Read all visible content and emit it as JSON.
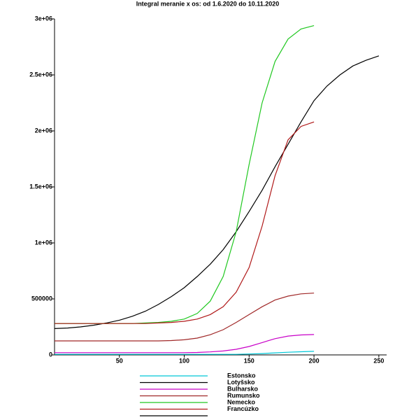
{
  "chart_data": {
    "type": "line",
    "title": "Integral meranie x os: od 1.6.2020 do 10.11.2020",
    "x": [
      0,
      10,
      20,
      30,
      40,
      50,
      60,
      70,
      80,
      90,
      100,
      110,
      120,
      130,
      140,
      150,
      160,
      170,
      180,
      190,
      200,
      210,
      220,
      230,
      240,
      250
    ],
    "xlim": [
      0,
      256
    ],
    "xticks": [
      50,
      100,
      150,
      200,
      250
    ],
    "ylim": [
      0,
      3000000
    ],
    "yticks": [
      0,
      500000,
      {
        "value": 1000000,
        "label": "1e+06"
      },
      {
        "value": 1500000,
        "label": "1.5e+06"
      },
      {
        "value": 2000000,
        "label": "2e+06"
      },
      {
        "value": 2500000,
        "label": "2.5e+06"
      },
      {
        "value": 3000000,
        "label": "3e+06"
      }
    ],
    "series": [
      {
        "name": "Estonsko",
        "color": "#00c8d8",
        "values": [
          5000,
          5000,
          5000,
          5000,
          5000,
          5000,
          5000,
          5000,
          5000,
          5000,
          5000,
          5000,
          5000,
          5000,
          5000,
          8000,
          12000,
          18000,
          24000,
          28000,
          32000,
          null,
          null,
          null,
          null,
          null
        ]
      },
      {
        "name": "Lotyšsko",
        "color": "#000000",
        "values": [
          235000,
          240000,
          250000,
          265000,
          285000,
          310000,
          345000,
          390000,
          450000,
          520000,
          600000,
          700000,
          810000,
          940000,
          1100000,
          1280000,
          1470000,
          1680000,
          1880000,
          2080000,
          2270000,
          2400000,
          2500000,
          2580000,
          2630000,
          2670000
        ]
      },
      {
        "name": "Bulharsko",
        "color": "#c800c8",
        "values": [
          20000,
          20000,
          20000,
          20000,
          20000,
          20000,
          20000,
          20000,
          20000,
          20000,
          20000,
          22000,
          27000,
          35000,
          50000,
          75000,
          110000,
          145000,
          168000,
          178000,
          182000,
          null,
          null,
          null,
          null,
          null
        ]
      },
      {
        "name": "Rumunsko",
        "color": "#a02828",
        "values": [
          125000,
          125000,
          125000,
          125000,
          125000,
          125000,
          125000,
          125000,
          125000,
          128000,
          135000,
          150000,
          180000,
          225000,
          290000,
          360000,
          430000,
          490000,
          525000,
          545000,
          552000,
          null,
          null,
          null,
          null,
          null
        ]
      },
      {
        "name": "Nemecko",
        "color": "#20c820",
        "values": [
          280000,
          280000,
          280000,
          280000,
          280000,
          280000,
          280000,
          285000,
          290000,
          300000,
          320000,
          370000,
          480000,
          700000,
          1100000,
          1700000,
          2250000,
          2620000,
          2820000,
          2910000,
          2940000,
          null,
          null,
          null,
          null,
          null
        ]
      },
      {
        "name": "Francúzko",
        "color": "#b01818",
        "values": [
          280000,
          280000,
          280000,
          280000,
          280000,
          280000,
          280000,
          280000,
          285000,
          290000,
          300000,
          320000,
          360000,
          430000,
          560000,
          780000,
          1150000,
          1600000,
          1920000,
          2040000,
          2080000,
          null,
          null,
          null,
          null,
          null
        ]
      }
    ]
  }
}
